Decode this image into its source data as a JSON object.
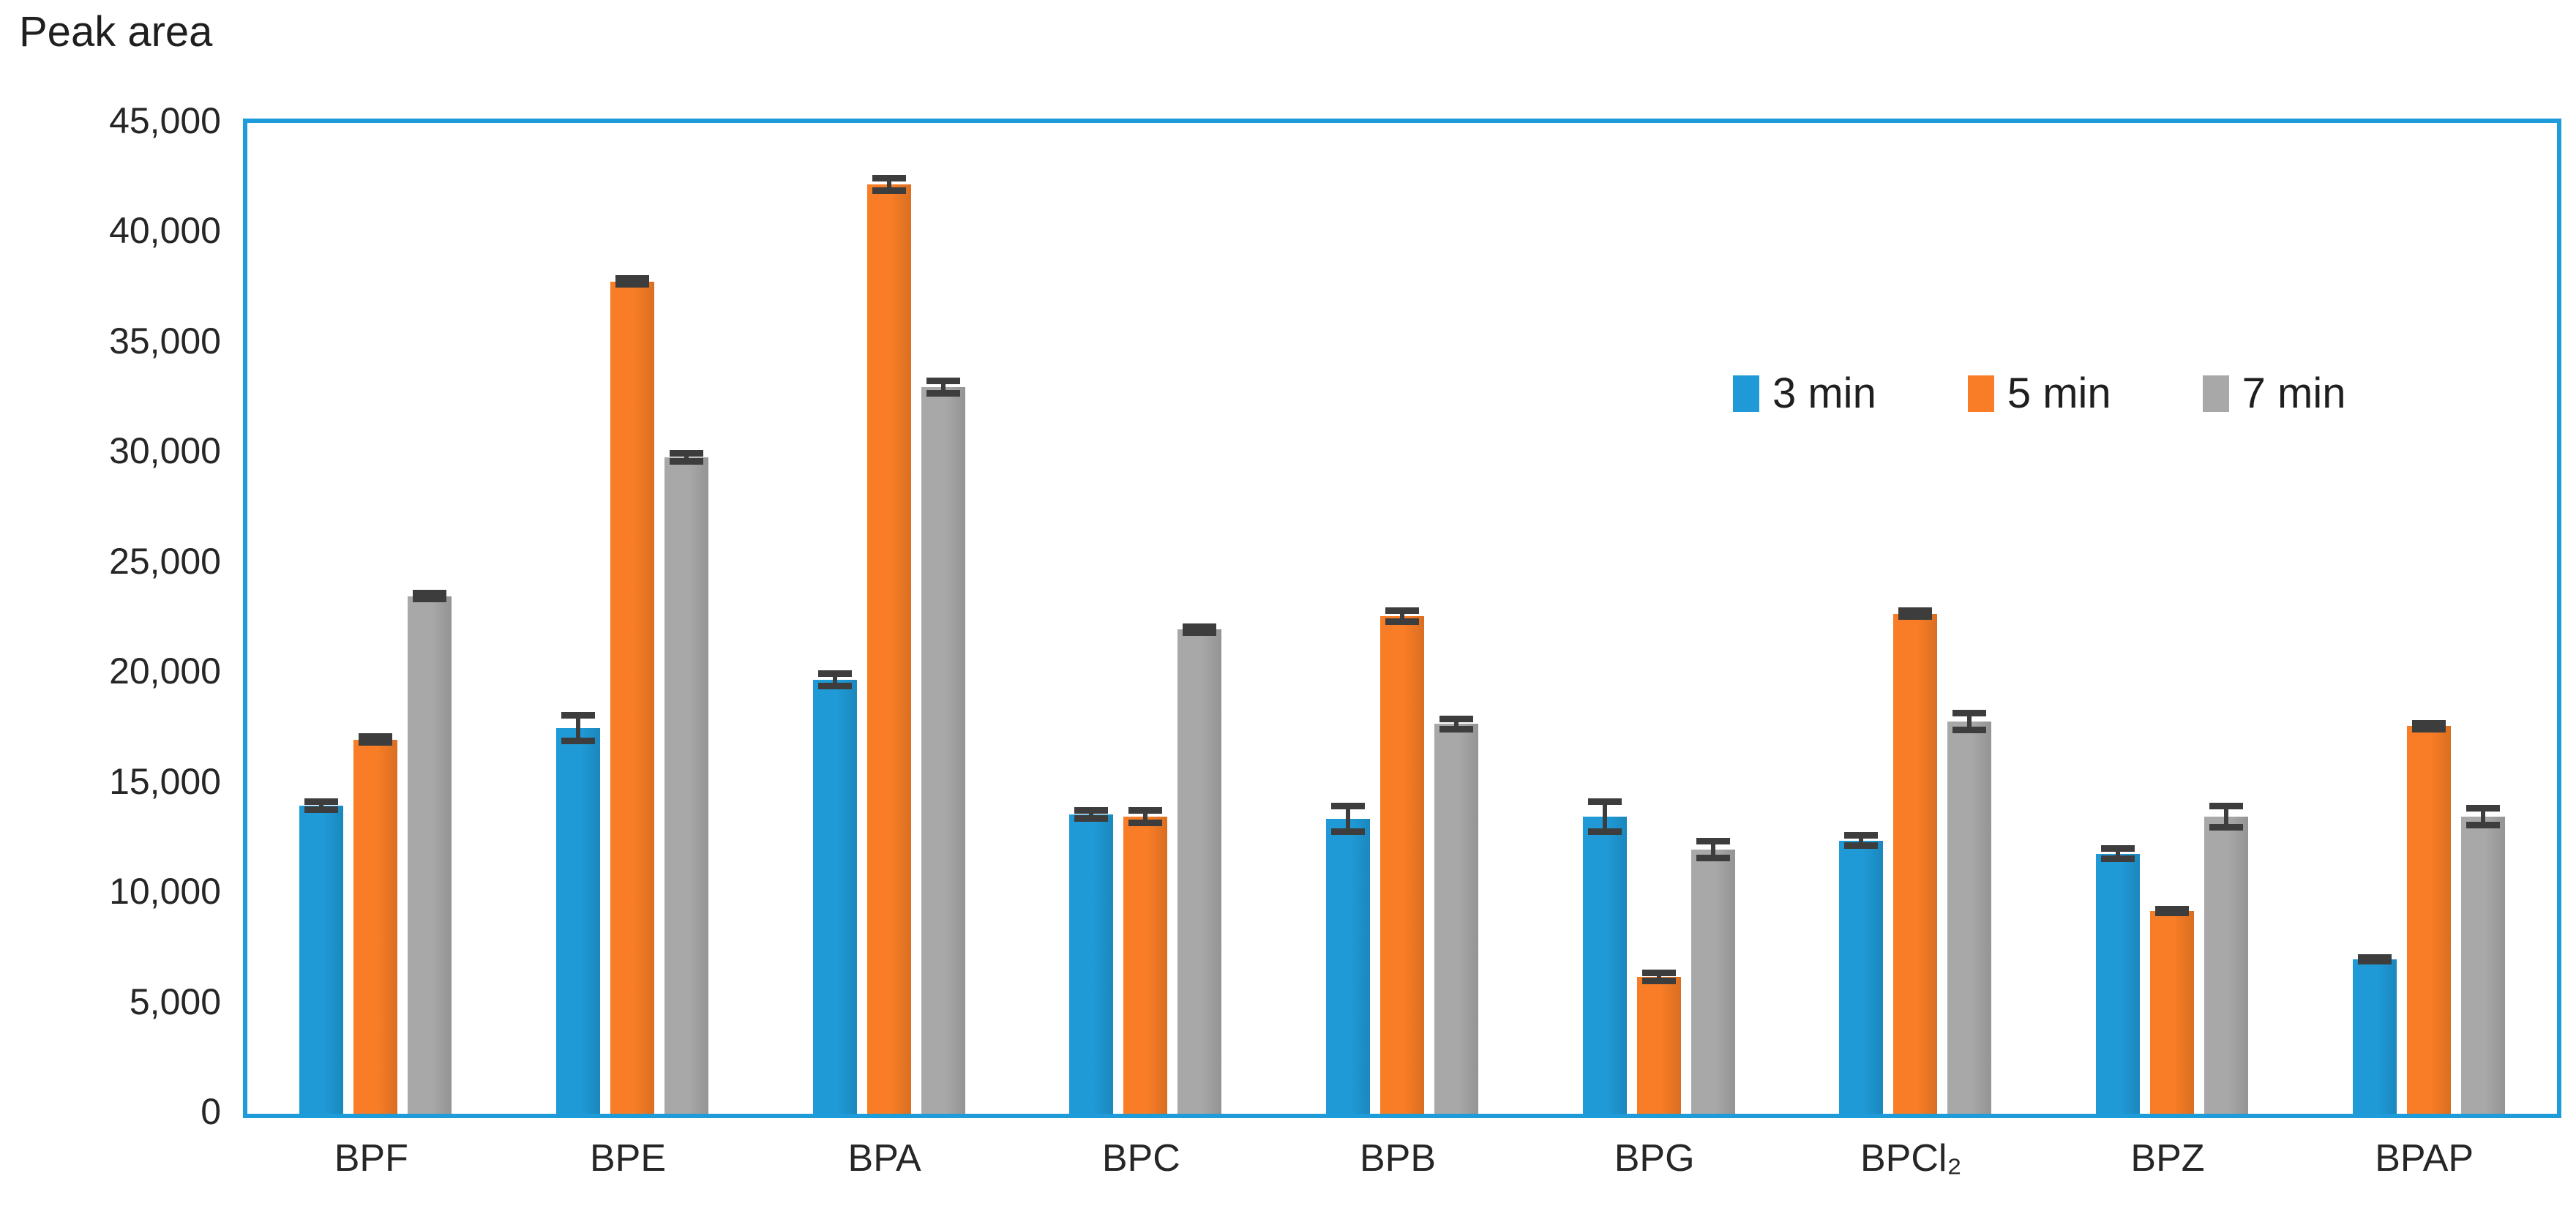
{
  "chart_data": {
    "type": "bar",
    "title": "Peak area",
    "categories": [
      "BPF",
      "BPE",
      "BPA",
      "BPC",
      "BPB",
      "BPG",
      "BPCl₂",
      "BPZ",
      "BPAP"
    ],
    "series": [
      {
        "name": "3 min",
        "color": "#1F9AD7",
        "values": [
          14000,
          17500,
          19700,
          13600,
          13400,
          13500,
          12400,
          11800,
          7000
        ],
        "errors": [
          200,
          600,
          300,
          200,
          600,
          700,
          250,
          250,
          100
        ]
      },
      {
        "name": "5 min",
        "color": "#F87D26",
        "values": [
          17000,
          37800,
          42200,
          13500,
          22600,
          6200,
          22700,
          9200,
          17600
        ],
        "errors": [
          150,
          150,
          300,
          300,
          250,
          200,
          150,
          100,
          150
        ]
      },
      {
        "name": "7 min",
        "color": "#A8A8A8",
        "values": [
          23500,
          29800,
          33000,
          22000,
          17700,
          12000,
          17800,
          13500,
          13500
        ],
        "errors": [
          150,
          200,
          300,
          150,
          250,
          400,
          400,
          500,
          400
        ]
      }
    ],
    "ylim": [
      0,
      45000
    ],
    "ytick_step": 5000,
    "y_tick_labels": [
      "0",
      "5,000",
      "10,000",
      "15,000",
      "20,000",
      "25,000",
      "30,000",
      "35,000",
      "40,000",
      "45,000"
    ],
    "grid": false,
    "legend_position": "inside-top-right",
    "plot_border_color": "#1E9CD9",
    "error_bar_color": "#3D3D3D",
    "text_color": "#262626"
  }
}
